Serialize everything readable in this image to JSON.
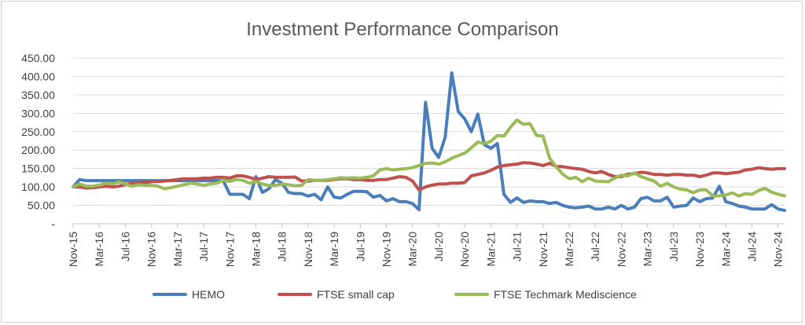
{
  "chart_data": {
    "type": "line",
    "title": "Investment Performance Comparison",
    "xlabel": "",
    "ylabel": "",
    "ylim": [
      0,
      450
    ],
    "ytick_values": [
      0,
      50,
      100,
      150,
      200,
      250,
      300,
      350,
      400,
      450
    ],
    "ytick_labels": [
      "-",
      "50.00",
      "100.00",
      "150.00",
      "200.00",
      "250.00",
      "300.00",
      "350.00",
      "400.00",
      "450.00"
    ],
    "x": [
      "Nov-15",
      "Dec-15",
      "Jan-16",
      "Feb-16",
      "Mar-16",
      "Apr-16",
      "May-16",
      "Jun-16",
      "Jul-16",
      "Aug-16",
      "Sep-16",
      "Oct-16",
      "Nov-16",
      "Dec-16",
      "Jan-17",
      "Feb-17",
      "Mar-17",
      "Apr-17",
      "May-17",
      "Jun-17",
      "Jul-17",
      "Aug-17",
      "Sep-17",
      "Oct-17",
      "Nov-17",
      "Dec-17",
      "Jan-18",
      "Feb-18",
      "Mar-18",
      "Apr-18",
      "May-18",
      "Jun-18",
      "Jul-18",
      "Aug-18",
      "Sep-18",
      "Oct-18",
      "Nov-18",
      "Dec-18",
      "Jan-19",
      "Feb-19",
      "Mar-19",
      "Apr-19",
      "May-19",
      "Jun-19",
      "Jul-19",
      "Aug-19",
      "Sep-19",
      "Oct-19",
      "Nov-19",
      "Dec-19",
      "Jan-20",
      "Feb-20",
      "Mar-20",
      "Apr-20",
      "May-20",
      "Jun-20",
      "Jul-20",
      "Aug-20",
      "Sep-20",
      "Oct-20",
      "Nov-20",
      "Dec-20",
      "Jan-21",
      "Feb-21",
      "Mar-21",
      "Apr-21",
      "May-21",
      "Jun-21",
      "Jul-21",
      "Aug-21",
      "Sep-21",
      "Oct-21",
      "Nov-21",
      "Dec-21",
      "Jan-22",
      "Feb-22",
      "Mar-22",
      "Apr-22",
      "May-22",
      "Jun-22",
      "Jul-22",
      "Aug-22",
      "Sep-22",
      "Oct-22",
      "Nov-22",
      "Dec-22",
      "Jan-23",
      "Feb-23",
      "Mar-23",
      "Apr-23",
      "May-23",
      "Jun-23",
      "Jul-23",
      "Aug-23",
      "Sep-23",
      "Oct-23",
      "Nov-23",
      "Dec-23",
      "Jan-24",
      "Feb-24",
      "Mar-24",
      "Apr-24",
      "May-24",
      "Jun-24",
      "Jul-24",
      "Aug-24",
      "Sep-24",
      "Oct-24",
      "Nov-24",
      "Dec-24"
    ],
    "xtick_labels": [
      "Nov-15",
      "Mar-16",
      "Jul-16",
      "Nov-16",
      "Mar-17",
      "Jul-17",
      "Nov-17",
      "Mar-18",
      "Jul-18",
      "Nov-18",
      "Mar-19",
      "Jul-19",
      "Nov-19",
      "Mar-20",
      "Jul-20",
      "Nov-20",
      "Mar-21",
      "Jul-21",
      "Nov-21",
      "Mar-22",
      "Jul-22",
      "Nov-22",
      "Mar-23",
      "Jul-23",
      "Nov-23",
      "Mar-24",
      "Jul-24",
      "Nov-24"
    ],
    "legend_position": "bottom",
    "grid": true,
    "series": [
      {
        "name": "HEMO",
        "color": "#4a7ebb",
        "values": [
          100,
          120,
          117,
          117,
          117,
          117,
          117,
          117,
          117,
          117,
          117,
          117,
          117,
          117,
          117,
          117,
          117,
          117,
          117,
          117,
          117,
          117,
          117,
          117,
          80,
          80,
          80,
          68,
          128,
          85,
          95,
          120,
          110,
          85,
          82,
          82,
          75,
          80,
          65,
          100,
          72,
          70,
          80,
          88,
          88,
          87,
          72,
          77,
          62,
          68,
          60,
          60,
          55,
          38,
          330,
          205,
          180,
          235,
          410,
          305,
          285,
          250,
          298,
          215,
          205,
          218,
          80,
          58,
          70,
          58,
          62,
          60,
          60,
          55,
          58,
          50,
          45,
          43,
          45,
          48,
          40,
          40,
          45,
          40,
          50,
          40,
          45,
          68,
          72,
          62,
          62,
          72,
          45,
          48,
          50,
          70,
          60,
          68,
          70,
          102,
          60,
          55,
          48,
          45,
          40,
          40,
          40,
          52,
          40,
          36
        ]
      },
      {
        "name": "FTSE small cap",
        "color": "#c0504d",
        "values": [
          100,
          100,
          97,
          98,
          100,
          102,
          100,
          102,
          106,
          110,
          112,
          112,
          114,
          115,
          116,
          118,
          120,
          122,
          122,
          122,
          124,
          124,
          126,
          126,
          124,
          130,
          130,
          126,
          120,
          124,
          128,
          126,
          126,
          126,
          127,
          116,
          116,
          118,
          118,
          118,
          120,
          122,
          122,
          120,
          120,
          118,
          118,
          120,
          120,
          124,
          128,
          126,
          116,
          92,
          100,
          105,
          108,
          108,
          110,
          110,
          112,
          130,
          134,
          138,
          145,
          154,
          158,
          160,
          162,
          166,
          165,
          162,
          158,
          164,
          156,
          155,
          152,
          150,
          148,
          142,
          138,
          142,
          134,
          128,
          128,
          135,
          136,
          140,
          138,
          134,
          134,
          132,
          134,
          134,
          132,
          132,
          128,
          132,
          138,
          138,
          136,
          138,
          140,
          146,
          148,
          152,
          150,
          148,
          150,
          150
        ]
      },
      {
        "name": "FTSE Techmark Mediscience",
        "color": "#9bbb59",
        "values": [
          100,
          108,
          102,
          102,
          105,
          110,
          108,
          114,
          108,
          102,
          106,
          104,
          104,
          102,
          95,
          98,
          102,
          106,
          110,
          108,
          104,
          108,
          110,
          118,
          115,
          120,
          118,
          110,
          115,
          108,
          104,
          104,
          108,
          106,
          103,
          104,
          120,
          118,
          118,
          120,
          122,
          125,
          124,
          125,
          124,
          126,
          130,
          146,
          150,
          146,
          148,
          150,
          152,
          158,
          164,
          165,
          162,
          168,
          178,
          185,
          192,
          206,
          222,
          218,
          224,
          240,
          238,
          262,
          282,
          270,
          272,
          240,
          238,
          178,
          155,
          135,
          122,
          126,
          114,
          124,
          116,
          115,
          114,
          124,
          132,
          130,
          138,
          128,
          122,
          116,
          102,
          110,
          100,
          94,
          92,
          84,
          92,
          92,
          75,
          76,
          78,
          84,
          75,
          82,
          80,
          90,
          96,
          86,
          80,
          76
        ]
      }
    ]
  }
}
